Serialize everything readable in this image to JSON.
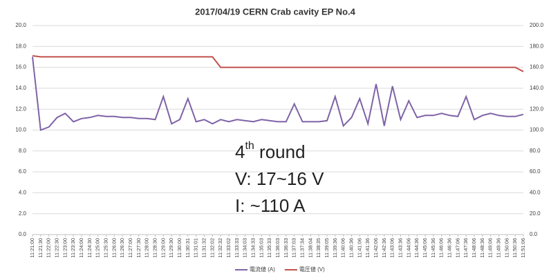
{
  "chart_data": {
    "type": "line",
    "title": "2017/04/19 CERN Crab cavity EP No.4",
    "annotations": [
      {
        "text": "4",
        "superscript": "th",
        "suffix": " round"
      },
      {
        "text": "V: 17~16 V"
      },
      {
        "text": "I: ~110 A"
      }
    ],
    "categories": [
      "11:21:00",
      "11:21:30",
      "11:22:00",
      "11:22:30",
      "11:23:00",
      "11:23:30",
      "11:24:00",
      "11:24:30",
      "11:25:00",
      "11:25:30",
      "11:26:00",
      "11:26:30",
      "11:27:00",
      "11:27:30",
      "11:28:00",
      "11:28:30",
      "11:29:00",
      "11:29:30",
      "11:30:00",
      "11:30:31",
      "11:31:01",
      "11:31:32",
      "11:32:02",
      "11:32:32",
      "11:33:02",
      "11:33:33",
      "11:34:03",
      "11:34:33",
      "11:35:03",
      "11:35:33",
      "11:36:03",
      "11:36:33",
      "11:37:03",
      "11:37:34",
      "11:38:04",
      "11:38:35",
      "11:39:05",
      "11:39:36",
      "11:40:06",
      "11:40:36",
      "11:41:06",
      "11:41:36",
      "11:42:06",
      "11:42:36",
      "11:43:06",
      "11:43:36",
      "11:44:06",
      "11:44:36",
      "11:45:06",
      "11:45:36",
      "11:46:06",
      "11:46:36",
      "11:47:06",
      "11:47:36",
      "11:48:06",
      "11:48:36",
      "11:49:06",
      "11:49:36",
      "11:50:06",
      "11:50:36",
      "11:51:06"
    ],
    "series": [
      {
        "name": "電流値 (A)",
        "color": "#7e62a6",
        "axis": "y2",
        "values": [
          170,
          100,
          103,
          112,
          116,
          108,
          111,
          112,
          114,
          113,
          113,
          112,
          112,
          111,
          111,
          110,
          132,
          106,
          110,
          130,
          108,
          110,
          106,
          110,
          108,
          110,
          109,
          108,
          110,
          109,
          108,
          108,
          125,
          108,
          108,
          108,
          109,
          132,
          104,
          112,
          130,
          106,
          144,
          104,
          142,
          110,
          128,
          112,
          114,
          114,
          116,
          114,
          113,
          132,
          110,
          114,
          116,
          114,
          113,
          113,
          115
        ]
      },
      {
        "name": "電圧値 (V)",
        "color": "#c0504d",
        "values": [
          17.1,
          17.0,
          17.0,
          17.0,
          17.0,
          17.0,
          17.0,
          17.0,
          17.0,
          17.0,
          17.0,
          17.0,
          17.0,
          17.0,
          17.0,
          17.0,
          17.0,
          17.0,
          17.0,
          17.0,
          17.0,
          17.0,
          17.0,
          16.0,
          16.0,
          16.0,
          16.0,
          16.0,
          16.0,
          16.0,
          16.0,
          16.0,
          16.0,
          16.0,
          16.0,
          16.0,
          16.0,
          16.0,
          16.0,
          16.0,
          16.0,
          16.0,
          16.0,
          16.0,
          16.0,
          16.0,
          16.0,
          16.0,
          16.0,
          16.0,
          16.0,
          16.0,
          16.0,
          16.0,
          16.0,
          16.0,
          16.0,
          16.0,
          16.0,
          16.0,
          15.6
        ]
      }
    ],
    "ylim": [
      0,
      20
    ],
    "yticks": [
      {
        "value": 0,
        "label": "0.0"
      },
      {
        "value": 2,
        "label": "2.0"
      },
      {
        "value": 4,
        "label": "4.0"
      },
      {
        "value": 6,
        "label": "6.0"
      },
      {
        "value": 8,
        "label": "8.0"
      },
      {
        "value": 10,
        "label": "10.0"
      },
      {
        "value": 12,
        "label": "12.0"
      },
      {
        "value": 14,
        "label": "14.0"
      },
      {
        "value": 16,
        "label": "16.0"
      },
      {
        "value": 18,
        "label": "18.0"
      },
      {
        "value": 20,
        "label": "20.0"
      }
    ],
    "y2lim": [
      0,
      200
    ],
    "y2ticks": [
      {
        "value": 0,
        "label": "0.0"
      },
      {
        "value": 20,
        "label": "20.0"
      },
      {
        "value": 40,
        "label": "40.0"
      },
      {
        "value": 60,
        "label": "60.0"
      },
      {
        "value": 80,
        "label": "80.0"
      },
      {
        "value": 100,
        "label": "100.0"
      },
      {
        "value": 120,
        "label": "120.0"
      },
      {
        "value": 140,
        "label": "140.0"
      },
      {
        "value": 160,
        "label": "160.0"
      },
      {
        "value": 180,
        "label": "180.0"
      },
      {
        "value": 200,
        "label": "200.0"
      }
    ],
    "grid": true,
    "legend": "bottom"
  }
}
